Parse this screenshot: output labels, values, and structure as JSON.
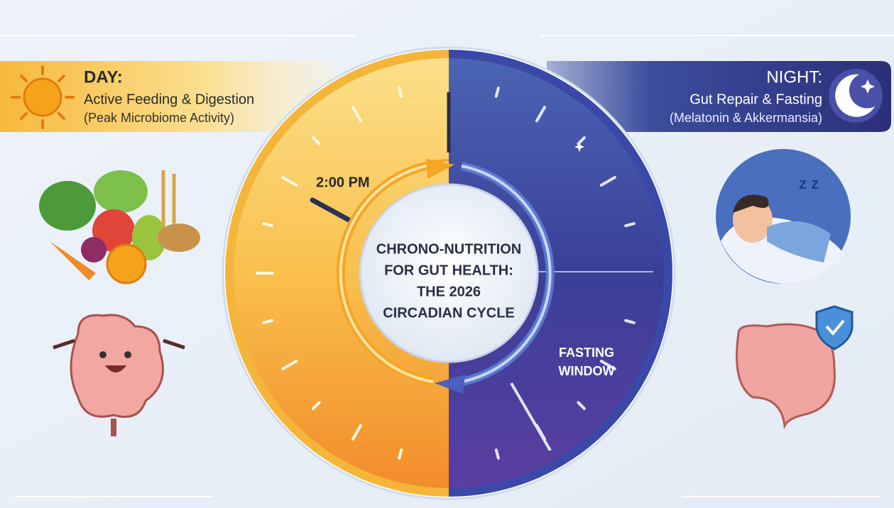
{
  "day": {
    "heading": "DAY:",
    "title": "Active Feeding & Digestion",
    "note": "(Peak Microbiome Activity)"
  },
  "night": {
    "heading": "NIGHT:",
    "title": "Gut Repair & Fasting",
    "note": "(Melatonin & Akkermansia)"
  },
  "clock": {
    "time_label": "2:00 PM",
    "center_title": [
      "CHRONO-NUTRITION",
      "FOR GUT HEALTH:",
      "THE 2026",
      "CIRCADIAN CYCLE"
    ],
    "window_label": [
      "FASTING",
      "WINDOW"
    ]
  }
}
